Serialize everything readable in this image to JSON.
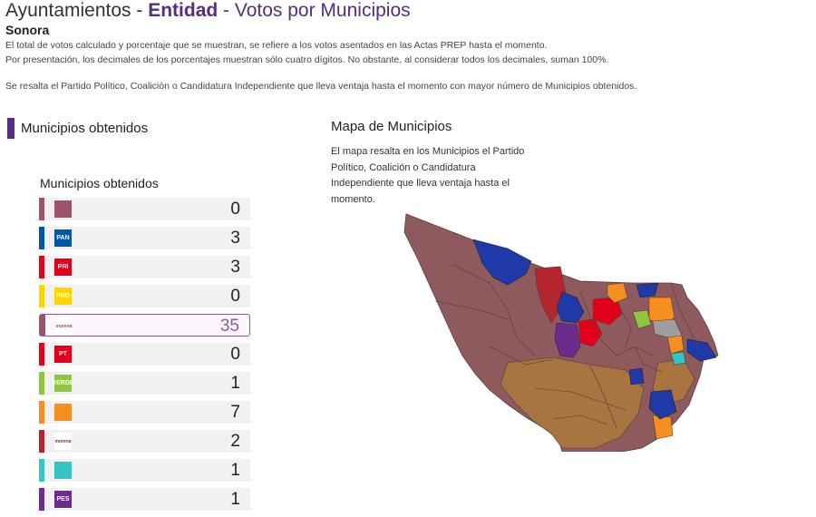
{
  "header": {
    "title_prefix": "Ayuntamientos - ",
    "title_entity": "Entidad",
    "title_suffix": " - Votos por Municipios",
    "state": "Sonora",
    "desc1": "El total de votos calculado y porcentaje que se muestran, se refiere a los votos asentados en las Actas PREP hasta el momento.",
    "desc2": "Por presentación, los decimales de los porcentajes muestran sólo cuatro dígitos. No obstante, al considerar todos los decimales, suman 100%.",
    "desc3": "Se resalta el Partido Político, Coalición o Candidatura Independiente que lleva ventaja hasta el momento con mayor número de Municipios obtenidos."
  },
  "left": {
    "heading": "Municipios obtenidos",
    "table_title": "Municipios obtenidos",
    "parties": [
      {
        "logo": "",
        "color": "#a0526a",
        "count": "0"
      },
      {
        "logo": "PAN",
        "color": "#0056a8",
        "count": "3"
      },
      {
        "logo": "PRI",
        "color": "#e2001a",
        "count": "3"
      },
      {
        "logo": "PRD",
        "color": "#ffd500",
        "count": "0"
      },
      {
        "logo": "morena",
        "color": "#a0526a",
        "count": "35"
      },
      {
        "logo": "PT",
        "color": "#e2001a",
        "count": "0"
      },
      {
        "logo": "VERDE",
        "color": "#8fc53f",
        "count": "1"
      },
      {
        "logo": "",
        "color": "#f78f1e",
        "count": "7"
      },
      {
        "logo": "morena",
        "color": "#b5252e",
        "count": "2"
      },
      {
        "logo": "",
        "color": "#35c5c7",
        "count": "1"
      },
      {
        "logo": "PES",
        "color": "#6a2d8b",
        "count": "1"
      }
    ]
  },
  "right": {
    "heading": "Mapa de Municipios",
    "desc": "El mapa resalta en los Municipios el Partido Político, Coalición o Candidatura Independiente que lleva ventaja hasta el momento."
  },
  "colors": {
    "morena_coalition": "#8e5a5e",
    "morena": "#a8743f",
    "pan": "#1f3aa8",
    "pri": "#e2001a",
    "mc": "#f78f1e",
    "verde": "#8fc53f",
    "pes": "#6a2d8b",
    "cyan": "#35c5c7",
    "gray": "#9e9e9e",
    "dark_red": "#b5252e"
  }
}
